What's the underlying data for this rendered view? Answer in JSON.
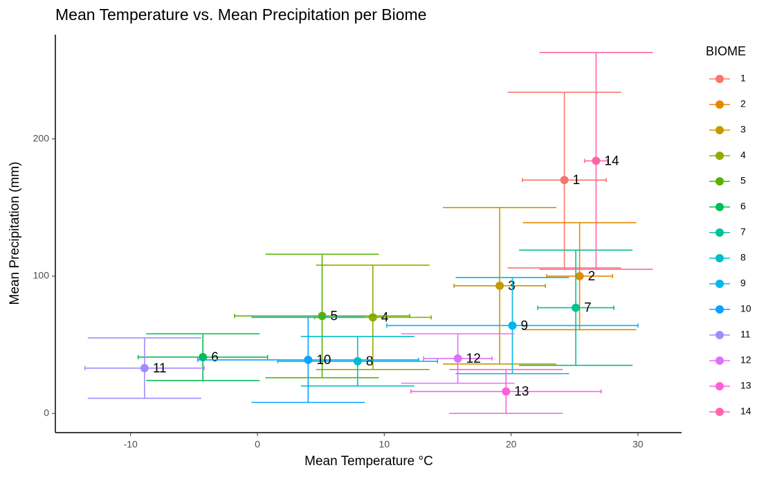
{
  "chart_data": {
    "type": "errorbar-scatter",
    "title": "Mean Temperature vs. Mean Precipitation per Biome",
    "x_label": "Mean Temperature °C",
    "y_label": "Mean Precipitation (mm)",
    "legend_title": "BIOME",
    "xlim": [
      -15.93,
      33.44
    ],
    "ylim": [
      -14,
      276
    ],
    "xticks": [
      -10,
      0,
      10,
      20,
      30
    ],
    "yticks": [
      0,
      100,
      200
    ],
    "grid": false,
    "legend": "right",
    "series": [
      {
        "name": "1",
        "color": "#F8766D",
        "x": [
          24.2
        ],
        "values": [
          170
        ],
        "xerror": [
          3.3
        ],
        "yerror": [
          64
        ]
      },
      {
        "name": "2",
        "color": "#E38900",
        "x": [
          25.4
        ],
        "values": [
          100
        ],
        "xerror": [
          2.6
        ],
        "yerror": [
          39
        ]
      },
      {
        "name": "3",
        "color": "#C49A00",
        "x": [
          19.1
        ],
        "values": [
          93
        ],
        "xerror": [
          3.6
        ],
        "yerror": [
          57
        ]
      },
      {
        "name": "4",
        "color": "#99A800",
        "x": [
          9.1
        ],
        "values": [
          70
        ],
        "xerror": [
          4.6
        ],
        "yerror": [
          38
        ]
      },
      {
        "name": "5",
        "color": "#53B400",
        "x": [
          5.1
        ],
        "values": [
          71
        ],
        "xerror": [
          6.9
        ],
        "yerror": [
          45
        ]
      },
      {
        "name": "6",
        "color": "#00BC56",
        "x": [
          -4.3
        ],
        "values": [
          41
        ],
        "xerror": [
          5.1
        ],
        "yerror": [
          17
        ]
      },
      {
        "name": "7",
        "color": "#00C094",
        "x": [
          25.1
        ],
        "values": [
          77
        ],
        "xerror": [
          3.0
        ],
        "yerror": [
          42
        ]
      },
      {
        "name": "8",
        "color": "#00BFC4",
        "x": [
          7.9
        ],
        "values": [
          38
        ],
        "xerror": [
          6.3
        ],
        "yerror": [
          18
        ]
      },
      {
        "name": "9",
        "color": "#00B6EB",
        "x": [
          20.1
        ],
        "values": [
          64
        ],
        "xerror": [
          9.9
        ],
        "yerror": [
          35
        ]
      },
      {
        "name": "10",
        "color": "#06A4FF",
        "x": [
          4.0
        ],
        "values": [
          39
        ],
        "xerror": [
          8.7
        ],
        "yerror": [
          31
        ]
      },
      {
        "name": "11",
        "color": "#A58AFF",
        "x": [
          -8.9
        ],
        "values": [
          33
        ],
        "xerror": [
          4.7
        ],
        "yerror": [
          22
        ]
      },
      {
        "name": "12",
        "color": "#DF70F8",
        "x": [
          15.8
        ],
        "values": [
          40
        ],
        "xerror": [
          2.7
        ],
        "yerror": [
          18
        ]
      },
      {
        "name": "13",
        "color": "#FB61D7",
        "x": [
          19.6
        ],
        "values": [
          16
        ],
        "xerror": [
          7.5
        ],
        "yerror": [
          16
        ]
      },
      {
        "name": "14",
        "color": "#FF66A8",
        "x": [
          26.7
        ],
        "values": [
          184
        ],
        "xerror": [
          0.9
        ],
        "yerror": [
          79
        ]
      }
    ]
  }
}
